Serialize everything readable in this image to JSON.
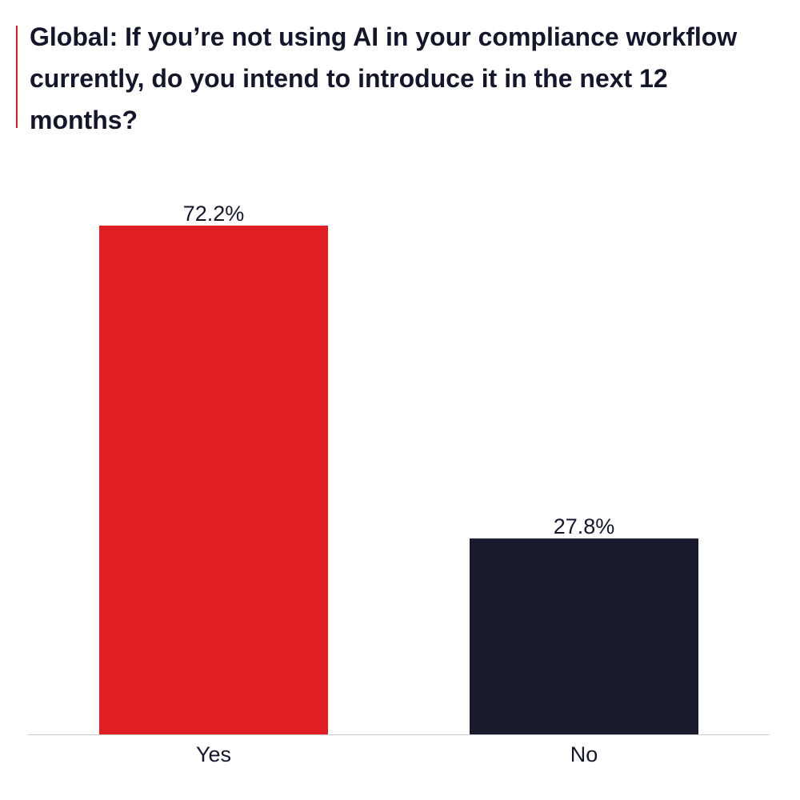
{
  "title": "Global: If you’re not using AI in your compliance workflow currently, do you intend to introduce it in the next 12 months?",
  "colors": {
    "accent": "#e11f22",
    "dark": "#1a1a2e",
    "axis": "#cccccc",
    "text": "#14172b"
  },
  "chart_data": {
    "type": "bar",
    "title": "Global: If you’re not using AI in your compliance workflow currently, do you intend to introduce it in the next 12 months?",
    "categories": [
      "Yes",
      "No"
    ],
    "values": [
      72.2,
      27.8
    ],
    "value_labels": [
      "72.2%",
      "27.8%"
    ],
    "bar_colors": [
      "#e11f22",
      "#1a1a2e"
    ],
    "unit": "%",
    "ylim": [
      0,
      80
    ],
    "grid": false,
    "legend": "none"
  }
}
